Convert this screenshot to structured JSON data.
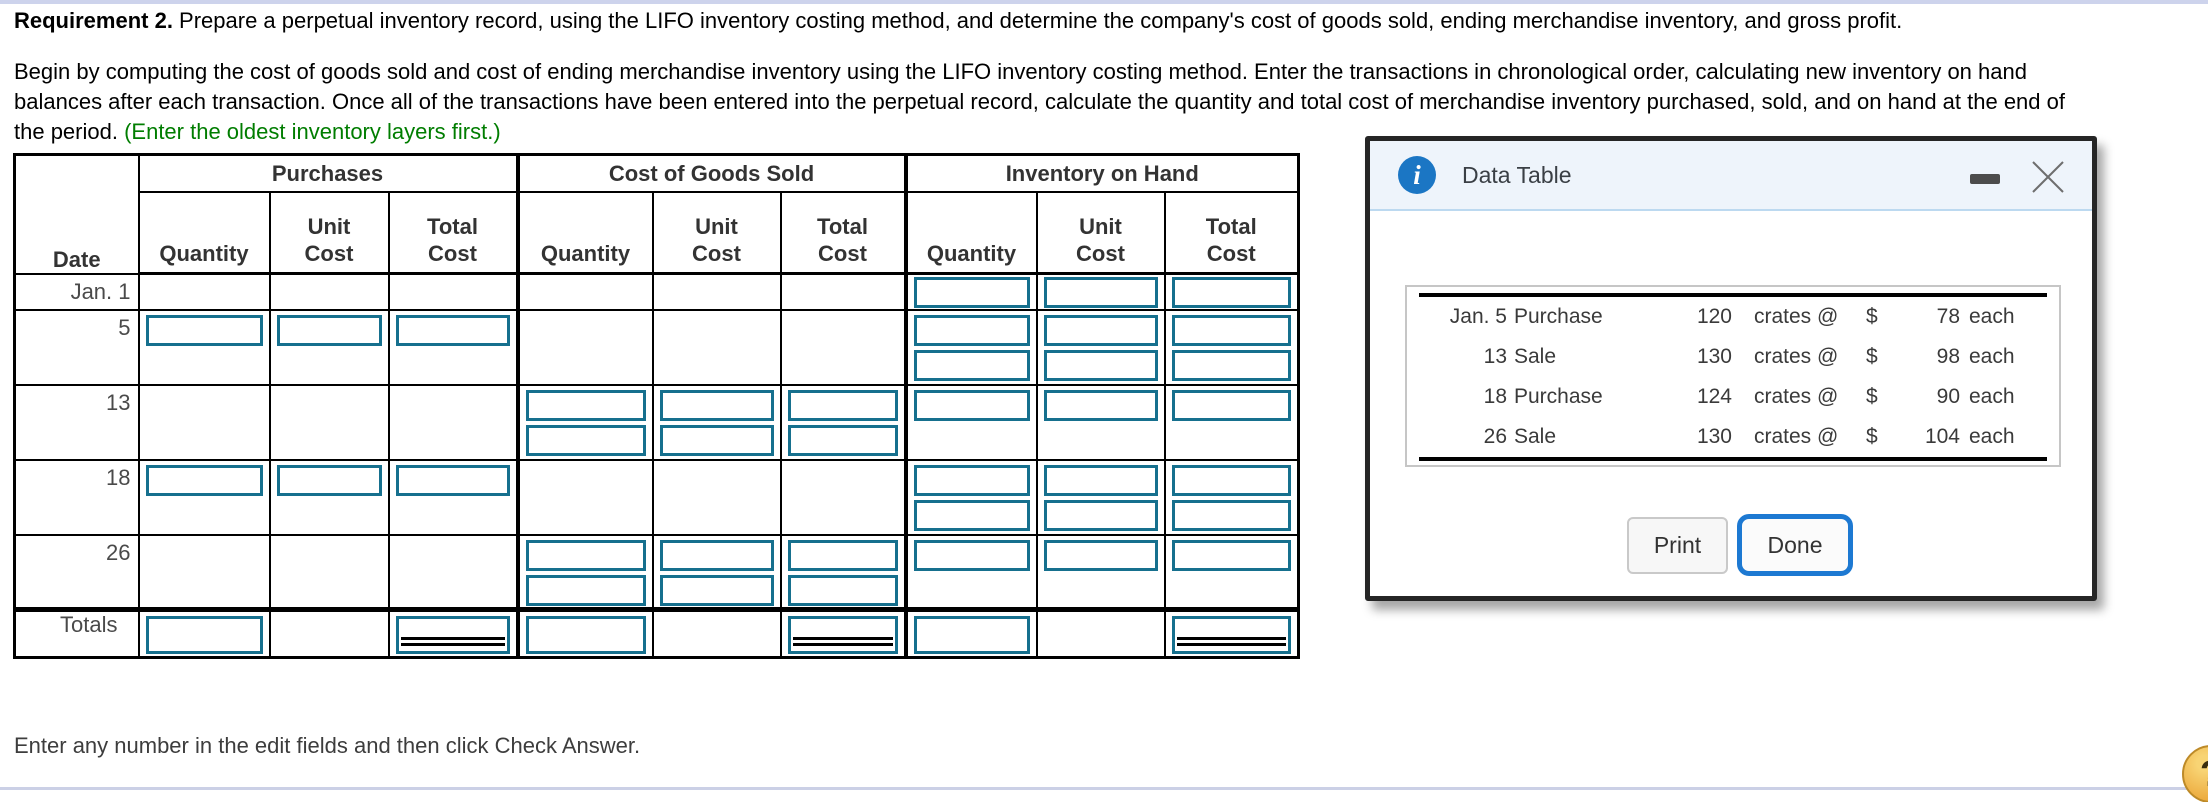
{
  "page": {
    "requirement_bold": "Requirement 2.",
    "requirement_rest": " Prepare a perpetual inventory record, using the LIFO inventory costing method, and determine the company's cost of goods sold, ending merchandise inventory, and gross profit.",
    "para_line1": "Begin by computing the cost of goods sold and cost of ending merchandise inventory using the LIFO inventory costing method. Enter the transactions in chronological order, calculating new inventory on hand",
    "para_line2": "balances after each transaction. Once all of the transactions have been entered into the perpetual record, calculate the quantity and total cost of merchandise inventory purchased, sold, and on hand at the end of",
    "para_line3": "the period. ",
    "para_line3_green": "(Enter the oldest inventory layers first.)",
    "footer_text": "Enter any number in the edit fields and then click Check Answer.",
    "help_label": "?"
  },
  "inventory_table": {
    "date_header": "Date",
    "col_groups": [
      "Purchases",
      "Cost of Goods Sold",
      "Inventory on Hand"
    ],
    "sub_headers": [
      "Quantity",
      "Unit\nCost",
      "Total\nCost"
    ],
    "rows": [
      {
        "date": "Jan. 1",
        "size": "r1",
        "inputs": [
          0,
          0,
          1
        ]
      },
      {
        "date": "5",
        "size": "r2",
        "inputs": [
          1,
          0,
          2
        ]
      },
      {
        "date": "13",
        "size": "r2",
        "inputs": [
          0,
          2,
          1
        ]
      },
      {
        "date": "18",
        "size": "r2",
        "inputs": [
          1,
          0,
          2
        ]
      },
      {
        "date": "26",
        "size": "r2",
        "inputs": [
          0,
          2,
          1
        ]
      }
    ],
    "totals_label": "Totals",
    "totals_pattern": [
      "input",
      "",
      "input_dbl",
      "input",
      "",
      "input_dbl",
      "input",
      "",
      "input_dbl"
    ]
  },
  "data_table_popup": {
    "title": "Data Table",
    "info_icon": "i",
    "rows": [
      {
        "date": "Jan. 5",
        "desc": "Purchase",
        "qty": "120",
        "at": "crates @",
        "currency": "$",
        "price": "78",
        "suffix": "each"
      },
      {
        "date": "13",
        "desc": "Sale",
        "qty": "130",
        "at": "crates @",
        "currency": "$",
        "price": "98",
        "suffix": "each"
      },
      {
        "date": "18",
        "desc": "Purchase",
        "qty": "124",
        "at": "crates @",
        "currency": "$",
        "price": "90",
        "suffix": "each"
      },
      {
        "date": "26",
        "desc": "Sale",
        "qty": "130",
        "at": "crates @",
        "currency": "$",
        "price": "104",
        "suffix": "each"
      }
    ],
    "print_label": "Print",
    "done_label": "Done"
  },
  "colors": {
    "input_border_teal": "#16708e",
    "done_button_blue": "#1d79d2",
    "info_icon_blue": "#1b76c4",
    "instruction_green": "#007d00",
    "popup_header_bg": "#eef4fb",
    "help_icon_orange": "#edad41",
    "divider_lavender": "#cdd3ec"
  }
}
